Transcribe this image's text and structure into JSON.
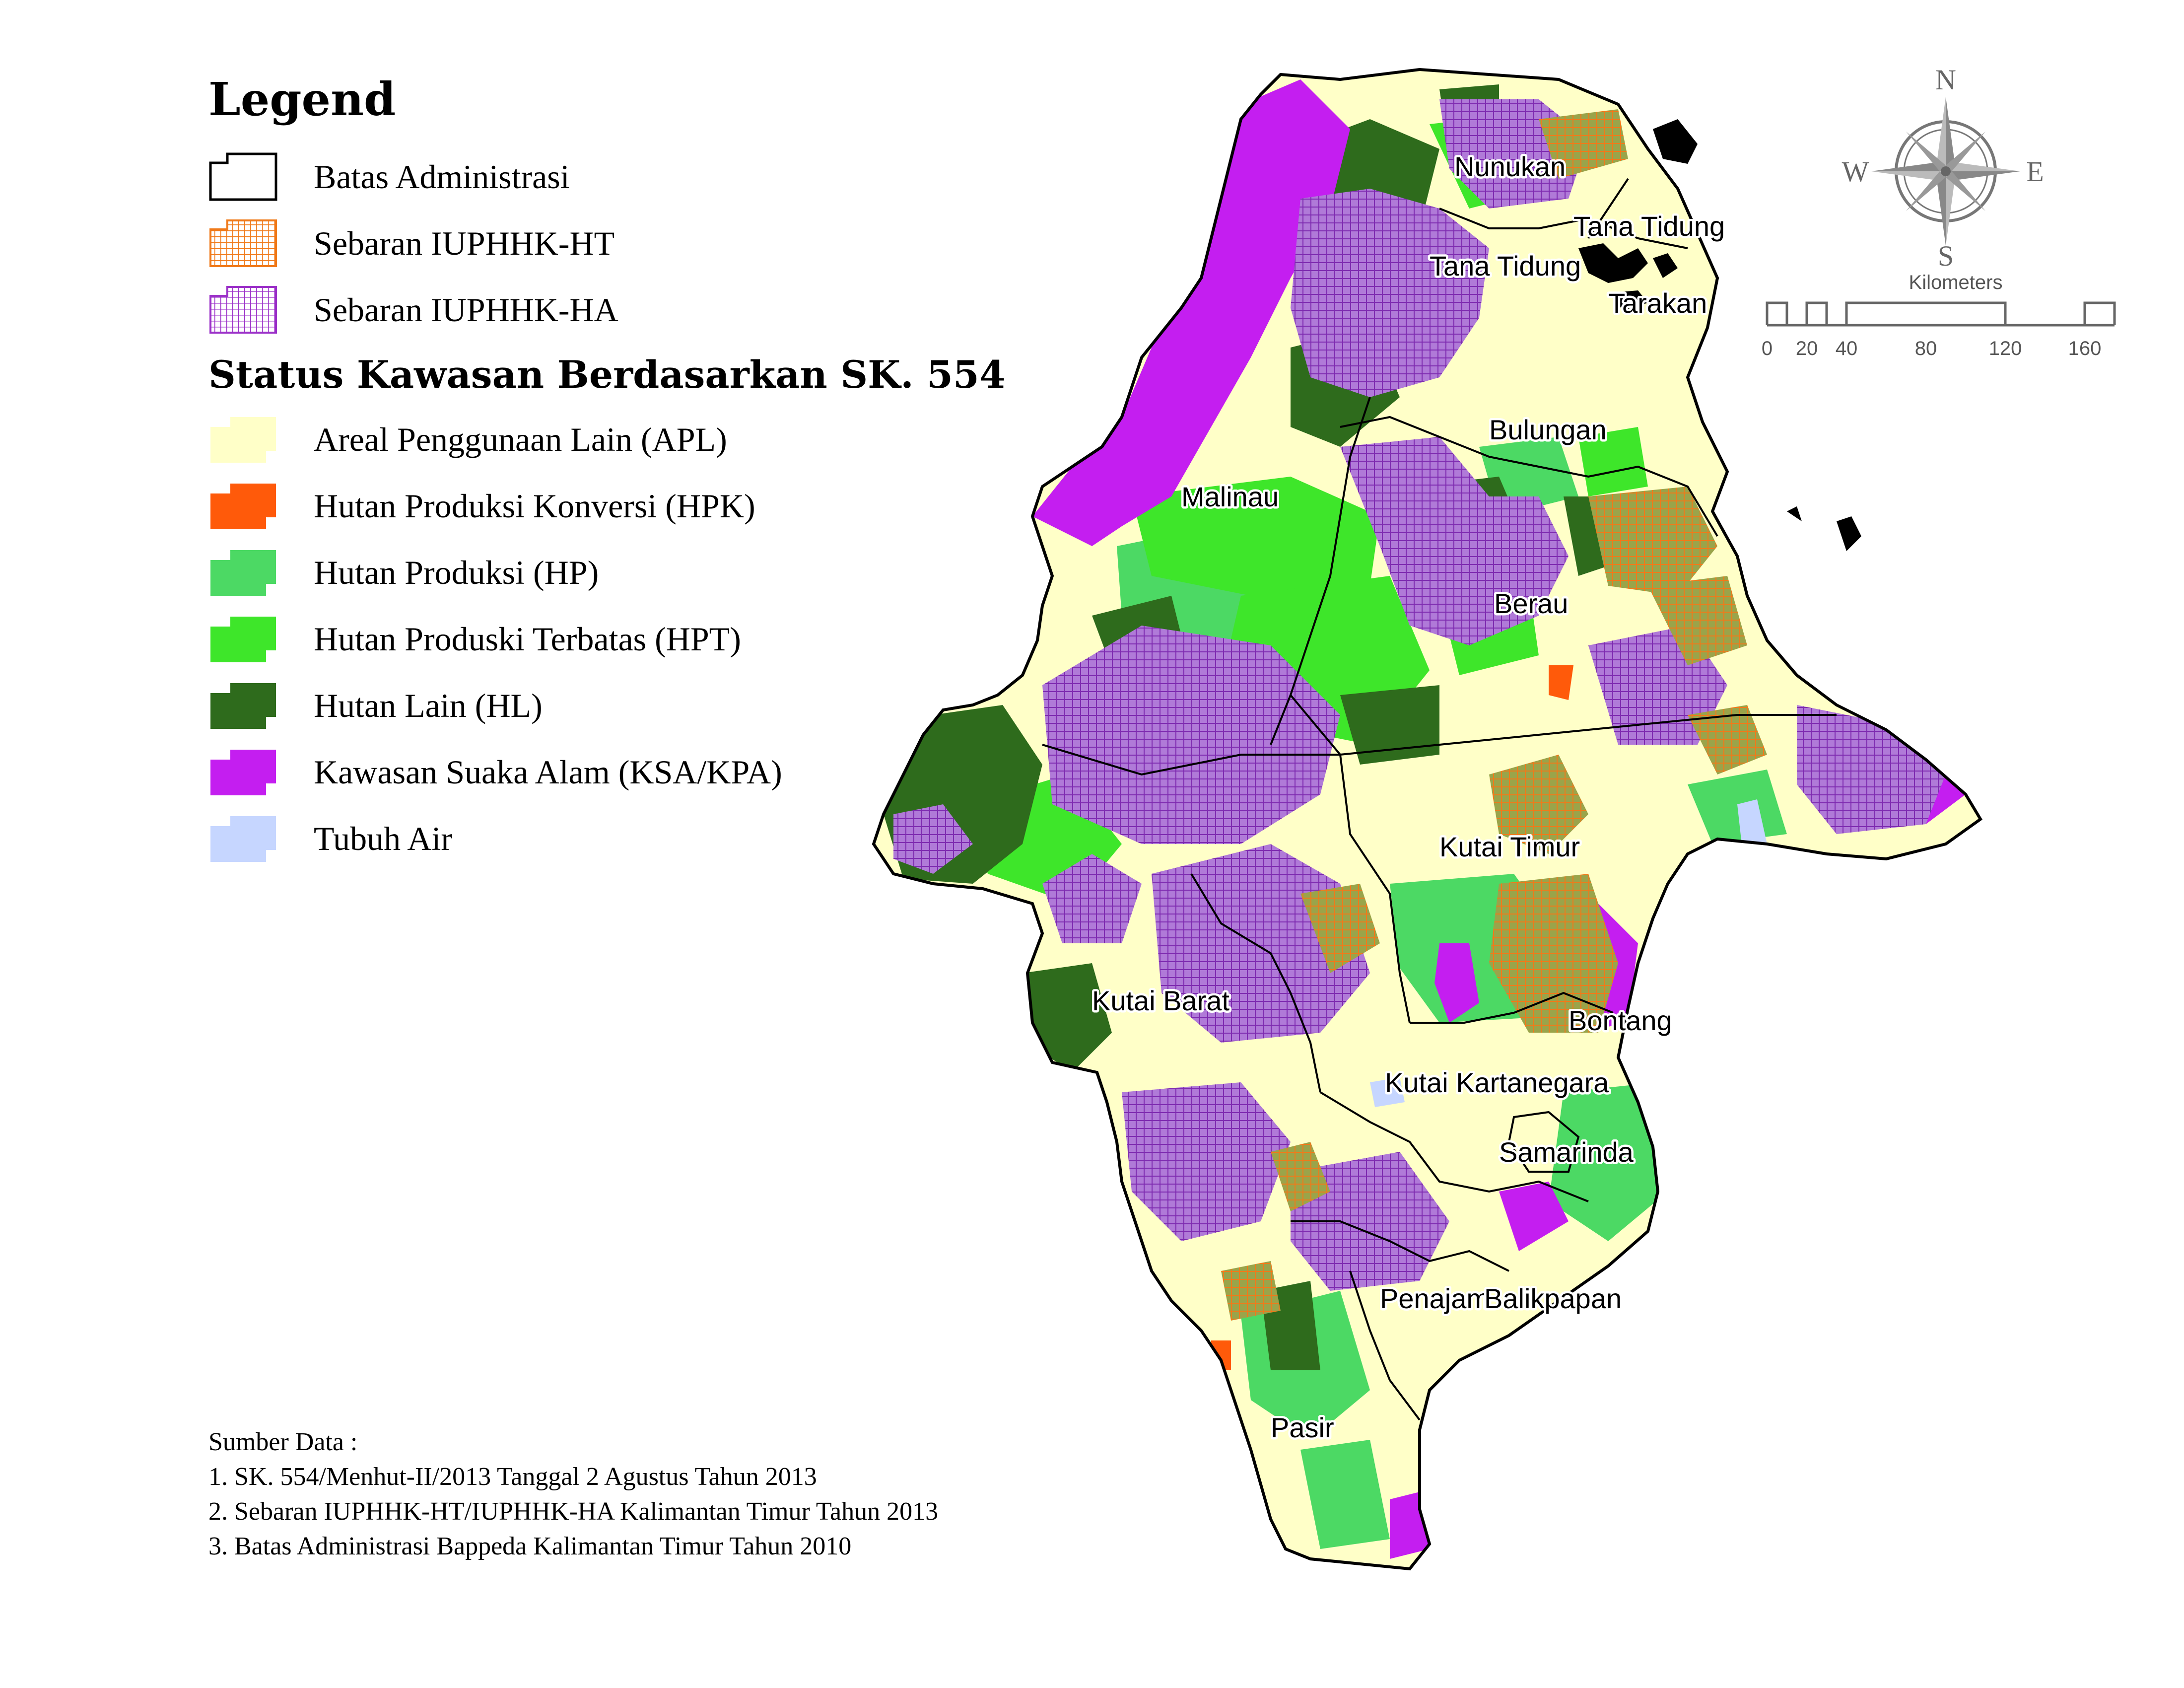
{
  "legend": {
    "title": "Legend",
    "items": [
      {
        "label": "Batas Administrasi",
        "fill": "#ffffff",
        "stroke": "#000000",
        "pattern": "none"
      },
      {
        "label": "Sebaran IUPHHK-HT",
        "fill": "#ffffff",
        "stroke": "#f07a1a",
        "pattern": "grid-orange"
      },
      {
        "label": "Sebaran IUPHHK-HA",
        "fill": "#ffffff",
        "stroke": "#9b30c8",
        "pattern": "grid-purple"
      }
    ],
    "status_title": "Status Kawasan Berdasarkan SK. 554",
    "status_items": [
      {
        "label": "Areal Penggunaan Lain (APL)",
        "color": "#ffffc8"
      },
      {
        "label": "Hutan Produksi Konversi (HPK)",
        "color": "#ff5a0a"
      },
      {
        "label": "Hutan Produksi (HP)",
        "color": "#4cd964"
      },
      {
        "label": "Hutan Produski Terbatas (HPT)",
        "color": "#3ee62a"
      },
      {
        "label": "Hutan Lain (HL)",
        "color": "#2e6b1c"
      },
      {
        "label": "Kawasan Suaka Alam (KSA/KPA)",
        "color": "#c41ef0"
      },
      {
        "label": "Tubuh Air",
        "color": "#c6d6ff"
      }
    ]
  },
  "regions": [
    {
      "name": "Nunukan"
    },
    {
      "name": "Tana Tidung"
    },
    {
      "name": "Tana Tidung"
    },
    {
      "name": "Tarakan"
    },
    {
      "name": "Malinau"
    },
    {
      "name": "Bulungan"
    },
    {
      "name": "Berau"
    },
    {
      "name": "Kutai Timur"
    },
    {
      "name": "Kutai Barat"
    },
    {
      "name": "Bontang"
    },
    {
      "name": "Kutai Kartanegara"
    },
    {
      "name": "Samarinda"
    },
    {
      "name": "Penajam"
    },
    {
      "name": "Balikpapan"
    },
    {
      "name": "Pasir"
    }
  ],
  "compass": {
    "n": "N",
    "s": "S",
    "e": "E",
    "w": "W"
  },
  "scale": {
    "unit": "Kilometers",
    "ticks": [
      "0",
      "20",
      "40",
      "80",
      "120",
      "160"
    ]
  },
  "source": {
    "heading": "Sumber Data :",
    "lines": [
      "1. SK. 554/Menhut-II/2013 Tanggal 2 Agustus Tahun 2013",
      "2. Sebaran  IUPHHK-HT/IUPHHK-HA Kalimantan Timur Tahun 2013",
      "3. Batas Administrasi Bappeda Kalimantan Timur Tahun 2010"
    ]
  },
  "colors": {
    "apl": "#ffffc8",
    "hpk": "#ff5a0a",
    "hp": "#4cd964",
    "hpt": "#3ee62a",
    "hl": "#2e6b1c",
    "ksa": "#c41ef0",
    "water": "#c6d6ff",
    "ht_hatch": "#f07a1a",
    "ha_hatch": "#9b30c8"
  }
}
